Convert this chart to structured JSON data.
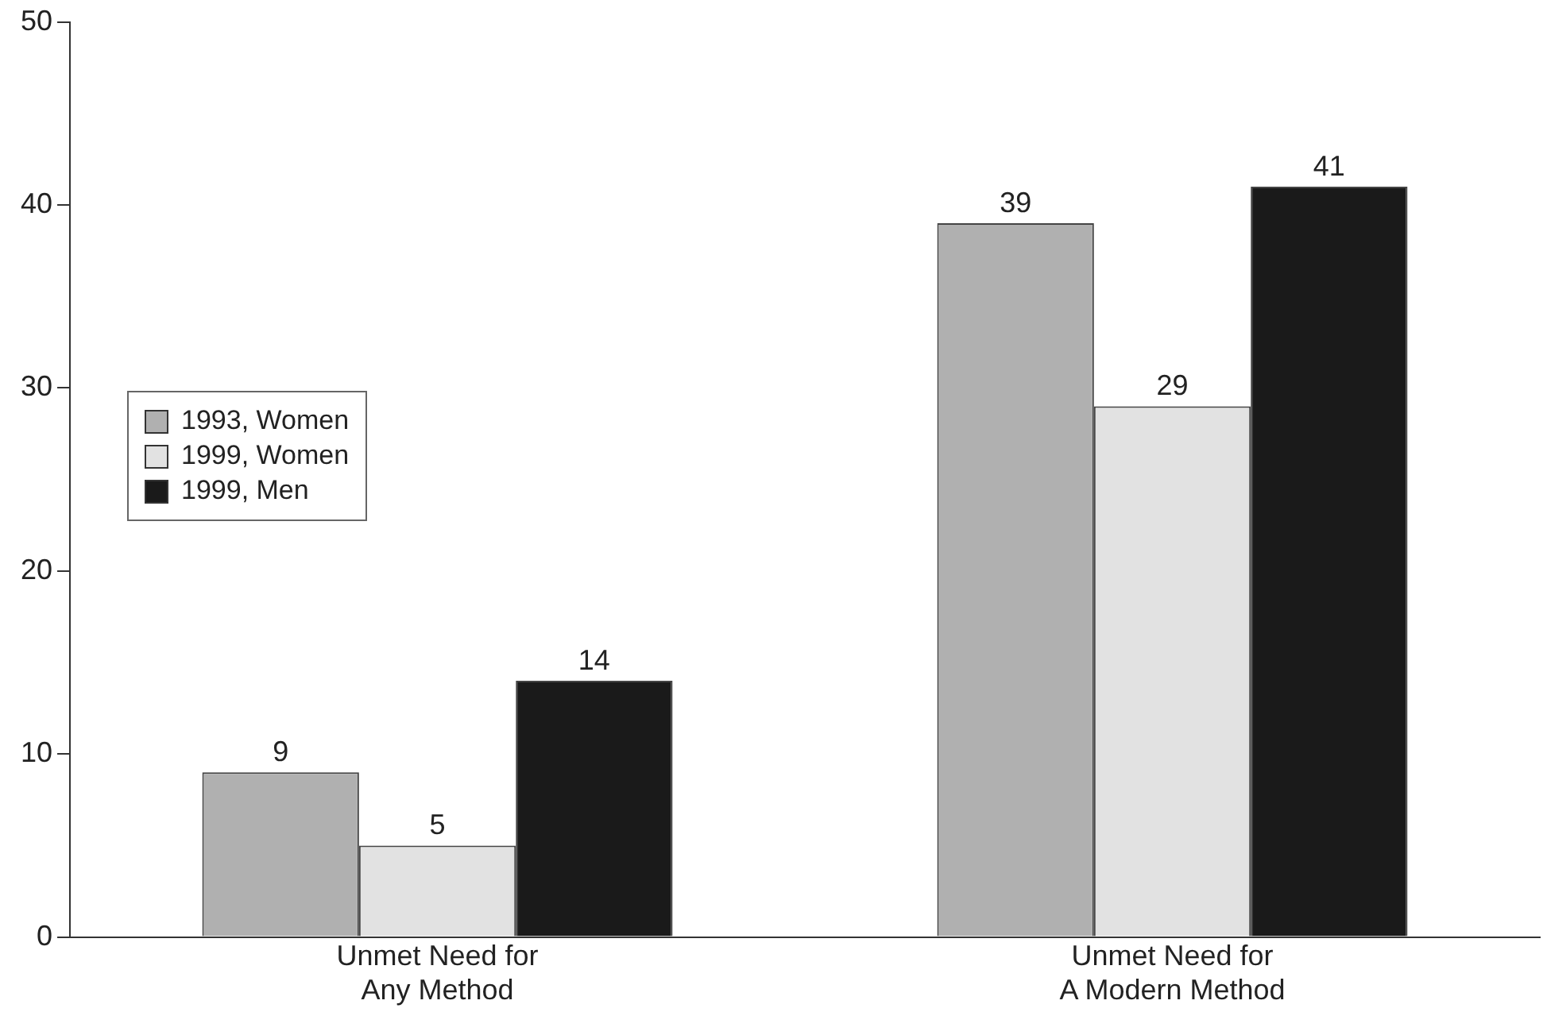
{
  "chart_data": {
    "type": "bar",
    "categories": [
      "Unmet Need for\nAny Method",
      "Unmet Need for\nA Modern Method"
    ],
    "series": [
      {
        "name": "1993, Women",
        "color": "#b0b0b0",
        "values": [
          9,
          39
        ]
      },
      {
        "name": "1999, Women",
        "color": "#e2e2e2",
        "values": [
          5,
          29
        ]
      },
      {
        "name": "1999, Men",
        "color": "#1a1a1a",
        "values": [
          14,
          41
        ]
      }
    ],
    "ylim": [
      0,
      50
    ],
    "yticks": [
      0,
      10,
      20,
      30,
      40,
      50
    ],
    "grid": false,
    "legend": "left",
    "data_labels": true
  }
}
